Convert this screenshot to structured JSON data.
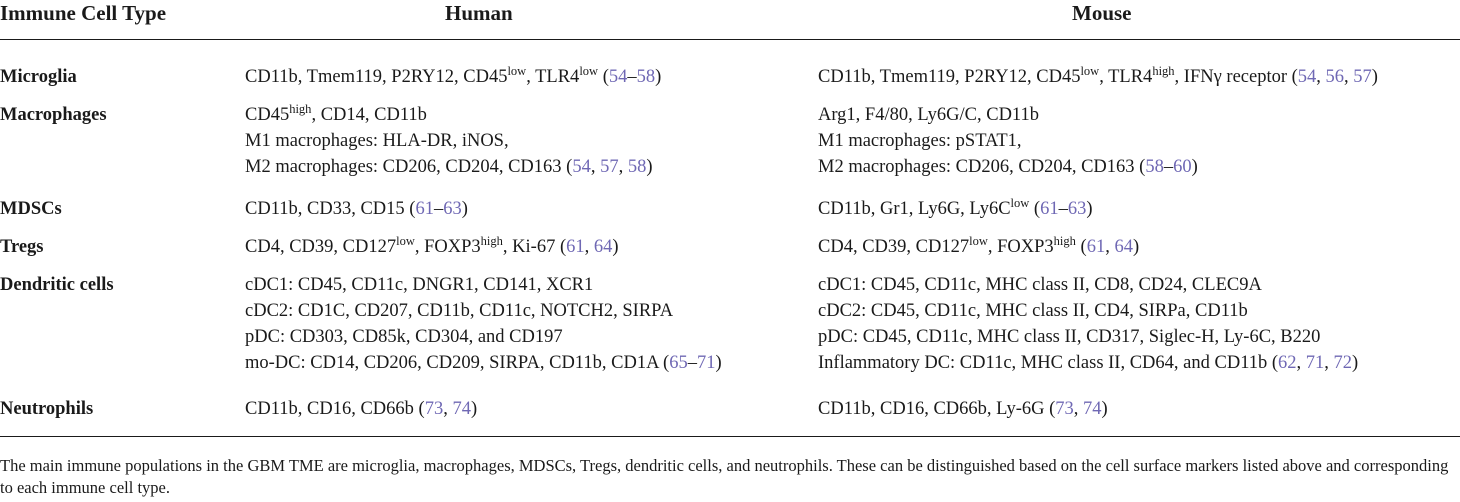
{
  "table": {
    "headers": {
      "type": "Immune Cell Type",
      "human": "Human",
      "mouse": "Mouse"
    },
    "rows": [
      {
        "type": "Microglia",
        "human": [
          [
            {
              "t": "CD11b, Tmem119, P2RY12, CD45"
            },
            {
              "t": "low",
              "s": 1
            },
            {
              "t": ", TLR4"
            },
            {
              "t": "low",
              "s": 1
            },
            {
              "t": " ("
            },
            {
              "t": "54",
              "r": 1
            },
            {
              "t": "–"
            },
            {
              "t": "58",
              "r": 1
            },
            {
              "t": ")"
            }
          ]
        ],
        "mouse": [
          [
            {
              "t": "CD11b, Tmem119, P2RY12, CD45"
            },
            {
              "t": "low",
              "s": 1
            },
            {
              "t": ", TLR4"
            },
            {
              "t": "high",
              "s": 1
            },
            {
              "t": ", IFNγ receptor ("
            },
            {
              "t": "54",
              "r": 1
            },
            {
              "t": ", "
            },
            {
              "t": "56",
              "r": 1
            },
            {
              "t": ", "
            },
            {
              "t": "57",
              "r": 1
            },
            {
              "t": ")"
            }
          ]
        ]
      },
      {
        "type": "Macrophages",
        "human": [
          [
            {
              "t": "CD45"
            },
            {
              "t": "high",
              "s": 1
            },
            {
              "t": ", CD14, CD11b"
            }
          ],
          [
            {
              "t": "M1 macrophages: HLA-DR, iNOS,"
            }
          ],
          [
            {
              "t": "M2 macrophages: CD206, CD204, CD163 ("
            },
            {
              "t": "54",
              "r": 1
            },
            {
              "t": ", "
            },
            {
              "t": "57",
              "r": 1
            },
            {
              "t": ", "
            },
            {
              "t": "58",
              "r": 1
            },
            {
              "t": ")"
            }
          ]
        ],
        "mouse": [
          [
            {
              "t": "Arg1, F4/80, Ly6G/C, CD11b"
            }
          ],
          [
            {
              "t": "M1 macrophages: pSTAT1,"
            }
          ],
          [
            {
              "t": "M2 macrophages: CD206, CD204, CD163 ("
            },
            {
              "t": "58",
              "r": 1
            },
            {
              "t": "–"
            },
            {
              "t": "60",
              "r": 1
            },
            {
              "t": ")"
            }
          ]
        ]
      },
      {
        "type": "MDSCs",
        "human": [
          [
            {
              "t": "CD11b, CD33, CD15 ("
            },
            {
              "t": "61",
              "r": 1
            },
            {
              "t": "–"
            },
            {
              "t": "63",
              "r": 1
            },
            {
              "t": ")"
            }
          ]
        ],
        "mouse": [
          [
            {
              "t": "CD11b, Gr1, Ly6G, Ly6C"
            },
            {
              "t": "low",
              "s": 1
            },
            {
              "t": " ("
            },
            {
              "t": "61",
              "r": 1
            },
            {
              "t": "–"
            },
            {
              "t": "63",
              "r": 1
            },
            {
              "t": ")"
            }
          ]
        ]
      },
      {
        "type": "Tregs",
        "human": [
          [
            {
              "t": "CD4, CD39, CD127"
            },
            {
              "t": "low",
              "s": 1
            },
            {
              "t": ", FOXP3"
            },
            {
              "t": "high",
              "s": 1
            },
            {
              "t": ", Ki-67 ("
            },
            {
              "t": "61",
              "r": 1
            },
            {
              "t": ", "
            },
            {
              "t": "64",
              "r": 1
            },
            {
              "t": ")"
            }
          ]
        ],
        "mouse": [
          [
            {
              "t": "CD4, CD39, CD127"
            },
            {
              "t": "low",
              "s": 1
            },
            {
              "t": ", FOXP3"
            },
            {
              "t": "high",
              "s": 1
            },
            {
              "t": " ("
            },
            {
              "t": "61",
              "r": 1
            },
            {
              "t": ", "
            },
            {
              "t": "64",
              "r": 1
            },
            {
              "t": ")"
            }
          ]
        ]
      },
      {
        "type": "Dendritic cells",
        "human": [
          [
            {
              "t": "cDC1: CD45, CD11c, DNGR1, CD141, XCR1"
            }
          ],
          [
            {
              "t": "cDC2: CD1C, CD207, CD11b, CD11c, NOTCH2, SIRPA"
            }
          ],
          [
            {
              "t": "pDC: CD303, CD85k, CD304, and CD197"
            }
          ],
          [
            {
              "t": "mo-DC: CD14, CD206, CD209, SIRPA, CD11b, CD1A ("
            },
            {
              "t": "65",
              "r": 1
            },
            {
              "t": "–"
            },
            {
              "t": "71",
              "r": 1
            },
            {
              "t": ")"
            }
          ]
        ],
        "mouse": [
          [
            {
              "t": "cDC1: CD45, CD11c, MHC class II, CD8, CD24, CLEC9A"
            }
          ],
          [
            {
              "t": "cDC2: CD45, CD11c, MHC class II, CD4, SIRPa, CD11b"
            }
          ],
          [
            {
              "t": "pDC: CD45, CD11c, MHC class II, CD317, Siglec-H, Ly-6C, B220"
            }
          ],
          [
            {
              "t": "Inflammatory DC: CD11c, MHC class II, CD64, and CD11b ("
            },
            {
              "t": "62",
              "r": 1
            },
            {
              "t": ", "
            },
            {
              "t": "71",
              "r": 1
            },
            {
              "t": ", "
            },
            {
              "t": "72",
              "r": 1
            },
            {
              "t": ")"
            }
          ]
        ]
      },
      {
        "type": "Neutrophils",
        "human": [
          [
            {
              "t": "CD11b, CD16, CD66b ("
            },
            {
              "t": "73",
              "r": 1
            },
            {
              "t": ", "
            },
            {
              "t": "74",
              "r": 1
            },
            {
              "t": ")"
            }
          ]
        ],
        "mouse": [
          [
            {
              "t": "CD11b, CD16, CD66b, Ly-6G ("
            },
            {
              "t": "73",
              "r": 1
            },
            {
              "t": ", "
            },
            {
              "t": "74",
              "r": 1
            },
            {
              "t": ")"
            }
          ]
        ]
      }
    ],
    "footnote": "The main immune populations in the GBM TME are microglia, macrophages, MDSCs, Tregs, dendritic cells, and neutrophils. These can be distinguished based on the cell surface markers listed above and corresponding to each immune cell type.",
    "colors": {
      "text": "#1a1a1a",
      "reference_link": "#6f68b4"
    }
  }
}
